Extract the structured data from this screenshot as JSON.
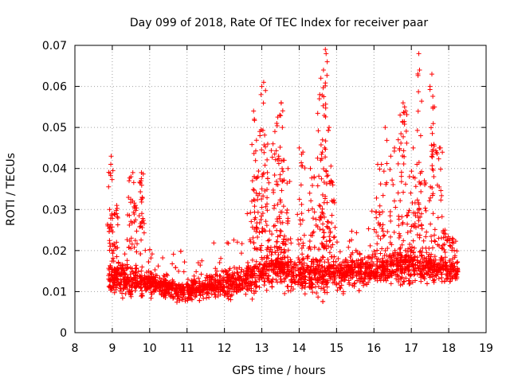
{
  "chart_data": {
    "type": "scatter",
    "title": "Day 099 of 2018, Rate Of TEC Index for receiver paar",
    "xlabel": "GPS time / hours",
    "ylabel": "ROTI / TECUs",
    "xlim": [
      8,
      19
    ],
    "ylim": [
      0,
      0.07
    ],
    "xticks": [
      "8",
      "9",
      "10",
      "11",
      "12",
      "13",
      "14",
      "15",
      "16",
      "17",
      "18",
      "19"
    ],
    "yticks": [
      "0",
      "0.01",
      "0.02",
      "0.03",
      "0.04",
      "0.05",
      "0.06",
      "0.07"
    ],
    "marker": "+",
    "grid": true,
    "color": "#ff0000",
    "series": [
      {
        "name": "ROTI",
        "density_profile": [
          {
            "x": 8.9,
            "y_center": 0.014,
            "y_spread": 0.006
          },
          {
            "x": 9.3,
            "y_center": 0.013,
            "y_spread": 0.006
          },
          {
            "x": 9.7,
            "y_center": 0.012,
            "y_spread": 0.005
          },
          {
            "x": 10.2,
            "y_center": 0.012,
            "y_spread": 0.004
          },
          {
            "x": 10.8,
            "y_center": 0.01,
            "y_spread": 0.004
          },
          {
            "x": 11.5,
            "y_center": 0.011,
            "y_spread": 0.004
          },
          {
            "x": 12.2,
            "y_center": 0.012,
            "y_spread": 0.005
          },
          {
            "x": 12.8,
            "y_center": 0.014,
            "y_spread": 0.006
          },
          {
            "x": 13.3,
            "y_center": 0.016,
            "y_spread": 0.008
          },
          {
            "x": 13.8,
            "y_center": 0.015,
            "y_spread": 0.007
          },
          {
            "x": 14.3,
            "y_center": 0.014,
            "y_spread": 0.007
          },
          {
            "x": 14.8,
            "y_center": 0.014,
            "y_spread": 0.007
          },
          {
            "x": 15.3,
            "y_center": 0.015,
            "y_spread": 0.006
          },
          {
            "x": 15.8,
            "y_center": 0.015,
            "y_spread": 0.006
          },
          {
            "x": 16.3,
            "y_center": 0.016,
            "y_spread": 0.006
          },
          {
            "x": 16.8,
            "y_center": 0.016,
            "y_spread": 0.007
          },
          {
            "x": 17.3,
            "y_center": 0.016,
            "y_spread": 0.006
          },
          {
            "x": 17.8,
            "y_center": 0.016,
            "y_spread": 0.006
          },
          {
            "x": 18.25,
            "y_center": 0.015,
            "y_spread": 0.005
          }
        ],
        "outlier_points": [
          [
            8.97,
            0.043
          ],
          [
            8.96,
            0.041
          ],
          [
            8.93,
            0.03
          ],
          [
            9.05,
            0.029
          ],
          [
            9.12,
            0.031
          ],
          [
            9.45,
            0.037
          ],
          [
            9.5,
            0.038
          ],
          [
            9.55,
            0.039
          ],
          [
            9.62,
            0.031
          ],
          [
            9.78,
            0.039
          ],
          [
            9.77,
            0.037
          ],
          [
            9.8,
            0.033
          ],
          [
            12.9,
            0.038
          ],
          [
            12.95,
            0.048
          ],
          [
            12.98,
            0.058
          ],
          [
            13.0,
            0.06
          ],
          [
            13.05,
            0.061
          ],
          [
            13.1,
            0.059
          ],
          [
            12.78,
            0.054
          ],
          [
            12.8,
            0.052
          ],
          [
            12.75,
            0.037
          ],
          [
            12.85,
            0.034
          ],
          [
            13.3,
            0.046
          ],
          [
            13.35,
            0.049
          ],
          [
            13.4,
            0.051
          ],
          [
            13.48,
            0.053
          ],
          [
            13.52,
            0.056
          ],
          [
            13.55,
            0.05
          ],
          [
            13.45,
            0.043
          ],
          [
            13.6,
            0.042
          ],
          [
            13.7,
            0.04
          ],
          [
            13.15,
            0.039
          ],
          [
            14.0,
            0.045
          ],
          [
            14.1,
            0.044
          ],
          [
            14.3,
            0.04
          ],
          [
            14.4,
            0.038
          ],
          [
            14.55,
            0.058
          ],
          [
            14.58,
            0.062
          ],
          [
            14.65,
            0.064
          ],
          [
            14.7,
            0.069
          ],
          [
            14.72,
            0.068
          ],
          [
            14.75,
            0.066
          ],
          [
            14.68,
            0.045
          ],
          [
            14.62,
            0.044
          ],
          [
            14.8,
            0.05
          ],
          [
            14.85,
            0.037
          ],
          [
            14.9,
            0.036
          ],
          [
            16.1,
            0.041
          ],
          [
            16.2,
            0.041
          ],
          [
            16.3,
            0.05
          ],
          [
            16.45,
            0.043
          ],
          [
            16.55,
            0.045
          ],
          [
            16.65,
            0.047
          ],
          [
            16.7,
            0.053
          ],
          [
            16.78,
            0.056
          ],
          [
            16.82,
            0.055
          ],
          [
            16.85,
            0.054
          ],
          [
            16.95,
            0.038
          ],
          [
            17.05,
            0.045
          ],
          [
            17.15,
            0.041
          ],
          [
            17.2,
            0.068
          ],
          [
            17.22,
            0.064
          ],
          [
            17.25,
            0.048
          ],
          [
            17.35,
            0.037
          ],
          [
            17.5,
            0.06
          ],
          [
            17.55,
            0.063
          ],
          [
            17.58,
            0.055
          ],
          [
            17.62,
            0.055
          ],
          [
            17.75,
            0.045
          ],
          [
            17.78,
            0.045
          ],
          [
            17.9,
            0.025
          ],
          [
            18.1,
            0.023
          ]
        ]
      }
    ]
  }
}
